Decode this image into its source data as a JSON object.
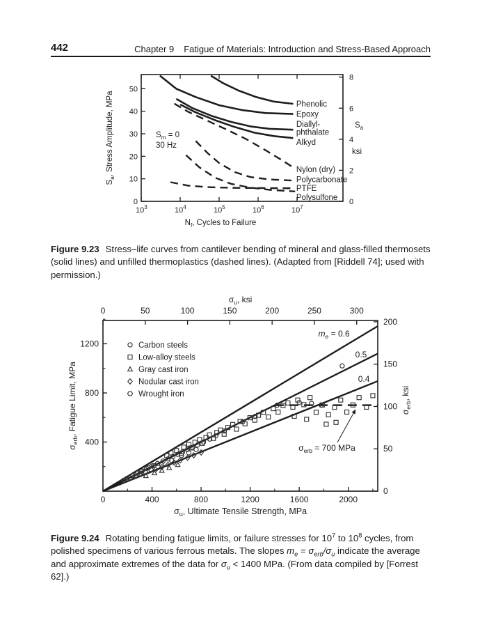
{
  "page": {
    "number": "442",
    "chapter_label": "Chapter 9",
    "chapter_title": "Fatigue of Materials: Introduction and Stress-Based Approach"
  },
  "colors": {
    "ink": "#1c1c1c",
    "curve": "#1e1e1e",
    "marker": "#333333"
  },
  "captions": {
    "fig23": [
      {
        "t": "Figure 9.23",
        "b": true
      },
      {
        "t": "Stress–life curves from cantilever bending of mineral and glass-filled thermosets (solid lines) and unfilled thermoplastics (dashed lines). (Adapted from [Riddell 74]; used with permission.)"
      }
    ],
    "fig24": [
      {
        "t": "Figure 9.24",
        "b": true
      },
      {
        "t": "Rotating bending fatigue limits, or failure stresses for 10"
      },
      {
        "t": "7",
        "sup": true
      },
      {
        "t": " to 10"
      },
      {
        "t": "8",
        "sup": true
      },
      {
        "t": " cycles, from polished specimens of various ferrous metals. The slopes "
      },
      {
        "t": "m",
        "i": true
      },
      {
        "t": "e",
        "i": true,
        "sub": true
      },
      {
        "t": " = "
      },
      {
        "t": "σ",
        "i": true
      },
      {
        "t": "erb",
        "i": true,
        "sub": true
      },
      {
        "t": "/",
        "i": true
      },
      {
        "t": "σ",
        "i": true
      },
      {
        "t": "u",
        "i": true,
        "sub": true
      },
      {
        "t": " indicate the average and approximate extremes of the data for "
      },
      {
        "t": "σ",
        "i": true
      },
      {
        "t": "u",
        "i": true,
        "sub": true
      },
      {
        "t": " < 1400 MPa. (From data compiled by [Forrest 62].)"
      }
    ]
  },
  "chart_data": [
    {
      "type": "line",
      "title": "",
      "x_scale": "log",
      "xlim_log": [
        3,
        8.2
      ],
      "x_ticks_exponents": [
        3,
        4,
        5,
        6,
        7
      ],
      "ylim_mpa": [
        0,
        56.3
      ],
      "y_ticks_left": [
        0,
        10,
        20,
        30,
        40,
        50
      ],
      "y_ticks_right_ksi": [
        0,
        2,
        4,
        6,
        8
      ],
      "xlabel_segs": [
        {
          "t": "N"
        },
        {
          "t": "f",
          "sub": true
        },
        {
          "t": ", Cycles to Failure"
        }
      ],
      "ylabel_left_segs": [
        {
          "t": "S"
        },
        {
          "t": "a",
          "sub": true
        },
        {
          "t": ", Stress Amplitude, MPa"
        }
      ],
      "right_axis_title_segs": [
        {
          "t": "S"
        },
        {
          "t": "a",
          "sub": true
        }
      ],
      "right_axis_unit": "ksi",
      "annotation_lines": [
        [
          {
            "t": "S"
          },
          {
            "t": "m",
            "sub": true
          },
          {
            "t": " = 0"
          }
        ],
        [
          {
            "t": "30 Hz"
          }
        ]
      ],
      "series": [
        {
          "name": "Phenolic",
          "style": "solid",
          "label_lines": [
            "Phenolic"
          ],
          "label_y_mpa": [
            43.3
          ],
          "points": [
            [
              4.79,
              55.8
            ],
            [
              5.1,
              52.5
            ],
            [
              5.5,
              49.2
            ],
            [
              5.95,
              46.3
            ],
            [
              6.4,
              44.3
            ],
            [
              6.9,
              43.3
            ]
          ]
        },
        {
          "name": "Epoxy",
          "style": "solid",
          "label_lines": [
            "Epoxy"
          ],
          "label_y_mpa": [
            38.8
          ],
          "points": [
            [
              3.48,
              55.8
            ],
            [
              3.9,
              50.0
            ],
            [
              4.4,
              46.3
            ],
            [
              5.0,
              42.7
            ],
            [
              5.6,
              40.5
            ],
            [
              6.2,
              39.2
            ],
            [
              6.9,
              38.8
            ]
          ]
        },
        {
          "name": "Diallyl-phthalate",
          "style": "solid",
          "label_lines": [
            "Diallyl-",
            "phthalate"
          ],
          "label_y_mpa": [
            34.4,
            30.8
          ],
          "points": [
            [
              3.9,
              45.5
            ],
            [
              4.3,
              41.5
            ],
            [
              4.8,
              38.0
            ],
            [
              5.3,
              35.3
            ],
            [
              5.8,
              33.3
            ],
            [
              6.3,
              32.2
            ],
            [
              6.9,
              31.8
            ]
          ]
        },
        {
          "name": "Alkyd",
          "style": "solid",
          "label_lines": [
            "Alkyd"
          ],
          "label_y_mpa": [
            26.3
          ],
          "points": [
            [
              4.0,
              43.0
            ],
            [
              4.4,
              39.5
            ],
            [
              4.9,
              36.0
            ],
            [
              5.4,
              33.0
            ],
            [
              5.9,
              30.5
            ],
            [
              6.4,
              29.0
            ],
            [
              6.9,
              28.1
            ]
          ]
        },
        {
          "name": "Nylon (dry)",
          "style": "dashed",
          "label_lines": [
            "Nylon (dry)"
          ],
          "label_y_mpa": [
            14.2
          ],
          "points": [
            [
              3.85,
              43.4
            ],
            [
              4.2,
              39.8
            ],
            [
              4.7,
              35.8
            ],
            [
              5.2,
              31.8
            ],
            [
              5.7,
              27.6
            ],
            [
              6.2,
              22.6
            ],
            [
              6.6,
              18.4
            ],
            [
              6.95,
              14.5
            ]
          ]
        },
        {
          "name": "Polycarbonate",
          "style": "dashed",
          "label_lines": [
            "Polycarbonate"
          ],
          "label_y_mpa": [
            9.7
          ],
          "points": [
            [
              4.4,
              26.8
            ],
            [
              4.7,
              21.5
            ],
            [
              5.0,
              17.0
            ],
            [
              5.4,
              13.0
            ],
            [
              5.8,
              10.8
            ],
            [
              6.3,
              9.7
            ],
            [
              6.95,
              9.2
            ]
          ]
        },
        {
          "name": "PTFE",
          "style": "dashed",
          "label_lines": [
            "PTFE"
          ],
          "label_y_mpa": [
            5.9
          ],
          "points": [
            [
              3.75,
              8.5
            ],
            [
              4.2,
              7.0
            ],
            [
              4.7,
              6.3
            ],
            [
              5.3,
              6.0
            ],
            [
              6.0,
              5.9
            ],
            [
              6.95,
              5.8
            ]
          ]
        },
        {
          "name": "Polysulfone",
          "style": "dashed",
          "label_lines": [
            "Polysulfone"
          ],
          "label_y_mpa": [
            1.9
          ],
          "points": [
            [
              4.15,
              20.5
            ],
            [
              4.5,
              15.0
            ],
            [
              4.9,
              10.5
            ],
            [
              5.3,
              7.8
            ],
            [
              5.8,
              6.1
            ],
            [
              6.3,
              5.1
            ],
            [
              6.95,
              4.4
            ]
          ]
        }
      ]
    },
    {
      "type": "scatter",
      "xlim_mpa": [
        0,
        2240
      ],
      "ylim_mpa": [
        0,
        1390
      ],
      "x_ticks_top_ksi": [
        0,
        50,
        100,
        150,
        200,
        250,
        300
      ],
      "x_ticks_bottom_mpa": [
        0,
        400,
        800,
        1200,
        1600,
        2000
      ],
      "x_minor_bottom_mpa": [
        200,
        600,
        1000,
        1400,
        1800,
        2200
      ],
      "y_ticks_left_mpa": [
        400,
        800,
        1200
      ],
      "y_minor_left_mpa": [
        200,
        600,
        1000,
        1400
      ],
      "y_ticks_right_ksi": [
        0,
        50,
        100,
        150,
        200
      ],
      "top_axis_label_segs": [
        {
          "t": "σ"
        },
        {
          "t": "u",
          "sub": true
        },
        {
          "t": ", ksi"
        }
      ],
      "bottom_axis_label_segs": [
        {
          "t": "σ"
        },
        {
          "t": "u",
          "sub": true
        },
        {
          "t": ", Ultimate Tensile Strength, MPa"
        }
      ],
      "left_axis_label_segs": [
        {
          "t": "σ"
        },
        {
          "t": "erb",
          "sub": true
        },
        {
          "t": ", Fatigue Limit, MPa"
        }
      ],
      "right_axis_label_segs": [
        {
          "t": "σ"
        },
        {
          "t": "erb",
          "sub": true
        },
        {
          "t": ", ksi"
        }
      ],
      "slope_lines": [
        {
          "m": 0.6,
          "label_segs": [
            {
              "t": "m",
              "i": true
            },
            {
              "t": "e",
              "i": true,
              "sub": true
            },
            {
              "t": " = 0.6"
            }
          ],
          "label_at": [
            1883,
            1260
          ]
        },
        {
          "m": 0.5,
          "label_segs": [
            {
              "t": "0.5"
            }
          ],
          "label_at": [
            2104,
            1090
          ]
        },
        {
          "m": 0.4,
          "label_segs": [
            {
              "t": "0.4"
            }
          ],
          "label_at": [
            2127,
            890
          ]
        }
      ],
      "dashed_line": {
        "y_mpa": 700,
        "x_start_mpa": 1400,
        "x_end_mpa": 2240
      },
      "annotation_segs": [
        {
          "t": "σ"
        },
        {
          "t": "erb",
          "sub": true
        },
        {
          "t": " = 700 MPa"
        }
      ],
      "annotation_at": [
        1826,
        330
      ],
      "legend": [
        {
          "marker": "circle",
          "label": "Carbon steels"
        },
        {
          "marker": "square",
          "label": "Low-alloy steels"
        },
        {
          "marker": "triangle",
          "label": "Gray cast iron"
        },
        {
          "marker": "diamond",
          "label": "Nodular cast iron"
        },
        {
          "marker": "hexagon",
          "label": "Wrought iron"
        }
      ],
      "series": [
        {
          "name": "Carbon steels",
          "marker": "circle",
          "points": [
            [
              310,
              160
            ],
            [
              355,
              185
            ],
            [
              400,
              205
            ],
            [
              445,
              225
            ],
            [
              480,
              215
            ],
            [
              490,
              245
            ],
            [
              530,
              262
            ],
            [
              560,
              250
            ],
            [
              570,
              282
            ],
            [
              610,
              300
            ],
            [
              640,
              290
            ],
            [
              650,
              320
            ],
            [
              690,
              340
            ],
            [
              700,
              312
            ],
            [
              730,
              356
            ],
            [
              760,
              338
            ],
            [
              770,
              375
            ],
            [
              820,
              400
            ],
            [
              870,
              424
            ],
            [
              920,
              450
            ],
            [
              990,
              490
            ],
            [
              1140,
              565
            ],
            [
              1240,
              608
            ],
            [
              1420,
              700
            ],
            [
              1600,
              722
            ],
            [
              1700,
              715
            ],
            [
              1780,
              700
            ],
            [
              1950,
              1020
            ]
          ]
        },
        {
          "name": "Low-alloy steels",
          "marker": "square",
          "points": [
            [
              520,
              290
            ],
            [
              555,
              312
            ],
            [
              600,
              330
            ],
            [
              640,
              308
            ],
            [
              660,
              358
            ],
            [
              700,
              380
            ],
            [
              718,
              352
            ],
            [
              750,
              398
            ],
            [
              788,
              420
            ],
            [
              810,
              390
            ],
            [
              840,
              438
            ],
            [
              868,
              458
            ],
            [
              900,
              430
            ],
            [
              928,
              478
            ],
            [
              958,
              498
            ],
            [
              988,
              464
            ],
            [
              1018,
              518
            ],
            [
              1058,
              543
            ],
            [
              1088,
              505
            ],
            [
              1118,
              568
            ],
            [
              1158,
              548
            ],
            [
              1198,
              598
            ],
            [
              1238,
              578
            ],
            [
              1268,
              618
            ],
            [
              1308,
              642
            ],
            [
              1348,
              604
            ],
            [
              1388,
              672
            ],
            [
              1428,
              644
            ],
            [
              1468,
              698
            ],
            [
              1508,
              718
            ],
            [
              1548,
              684
            ],
            [
              1588,
              742
            ],
            [
              1638,
              704
            ],
            [
              1688,
              762
            ],
            [
              1738,
              642
            ],
            [
              1788,
              702
            ],
            [
              1838,
              622
            ],
            [
              1888,
              682
            ],
            [
              1938,
              742
            ],
            [
              1988,
              644
            ],
            [
              2038,
              702
            ],
            [
              2088,
              762
            ],
            [
              2148,
              684
            ],
            [
              2200,
              778
            ],
            [
              1560,
              610
            ],
            [
              1660,
              585
            ],
            [
              1820,
              545
            ],
            [
              1900,
              560
            ]
          ]
        },
        {
          "name": "Gray cast iron",
          "marker": "triangle",
          "points": [
            [
              350,
              125
            ],
            [
              420,
              148
            ],
            [
              480,
              168
            ],
            [
              540,
              190
            ],
            [
              610,
              215
            ]
          ]
        },
        {
          "name": "Nodular cast iron",
          "marker": "diamond",
          "points": [
            [
              430,
              175
            ],
            [
              480,
              196
            ],
            [
              530,
              214
            ],
            [
              580,
              233
            ],
            [
              630,
              252
            ],
            [
              690,
              272
            ],
            [
              740,
              292
            ],
            [
              800,
              315
            ]
          ]
        },
        {
          "name": "Wrought iron",
          "marker": "hexagon",
          "points": [
            [
              170,
              88
            ],
            [
              195,
              102
            ],
            [
              220,
              108
            ],
            [
              245,
              128
            ],
            [
              262,
              120
            ],
            [
              285,
              148
            ],
            [
              300,
              140
            ],
            [
              320,
              165
            ],
            [
              345,
              158
            ],
            [
              370,
              190
            ],
            [
              390,
              178
            ],
            [
              415,
              208
            ]
          ]
        }
      ]
    }
  ]
}
